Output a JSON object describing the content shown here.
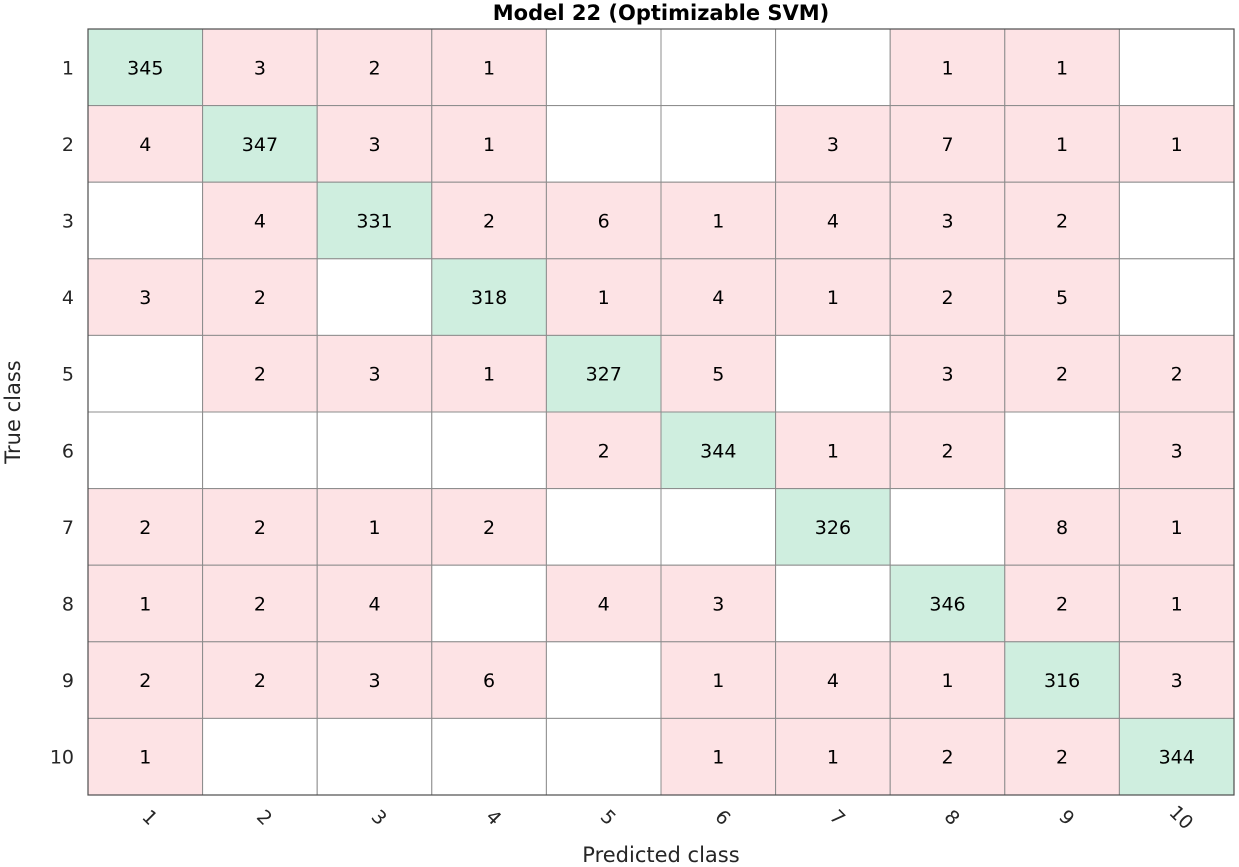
{
  "chart_data": {
    "type": "heatmap",
    "title": "Model 22 (Optimizable SVM)",
    "xlabel": "Predicted class",
    "ylabel": "True class",
    "row_labels": [
      "1",
      "2",
      "3",
      "4",
      "5",
      "6",
      "7",
      "8",
      "9",
      "10"
    ],
    "col_labels": [
      "1",
      "2",
      "3",
      "4",
      "5",
      "6",
      "7",
      "8",
      "9",
      "10"
    ],
    "matrix": [
      [
        345,
        3,
        2,
        1,
        null,
        null,
        null,
        1,
        1,
        null
      ],
      [
        4,
        347,
        3,
        1,
        null,
        null,
        3,
        7,
        1,
        1
      ],
      [
        null,
        4,
        331,
        2,
        6,
        1,
        4,
        3,
        2,
        null
      ],
      [
        3,
        2,
        null,
        318,
        1,
        4,
        1,
        2,
        5,
        null
      ],
      [
        null,
        2,
        3,
        1,
        327,
        5,
        null,
        3,
        2,
        2
      ],
      [
        null,
        null,
        null,
        null,
        2,
        344,
        1,
        2,
        null,
        3
      ],
      [
        2,
        2,
        1,
        2,
        null,
        null,
        326,
        null,
        8,
        1
      ],
      [
        1,
        2,
        4,
        null,
        4,
        3,
        null,
        346,
        2,
        1
      ],
      [
        2,
        2,
        3,
        6,
        null,
        1,
        4,
        1,
        316,
        3
      ],
      [
        1,
        null,
        null,
        null,
        null,
        1,
        1,
        2,
        2,
        344
      ]
    ],
    "colors": {
      "correct": "#cfeedf",
      "incorrect": "#fde3e5",
      "empty": "#ffffff",
      "grid": "#8c8c8c"
    }
  }
}
